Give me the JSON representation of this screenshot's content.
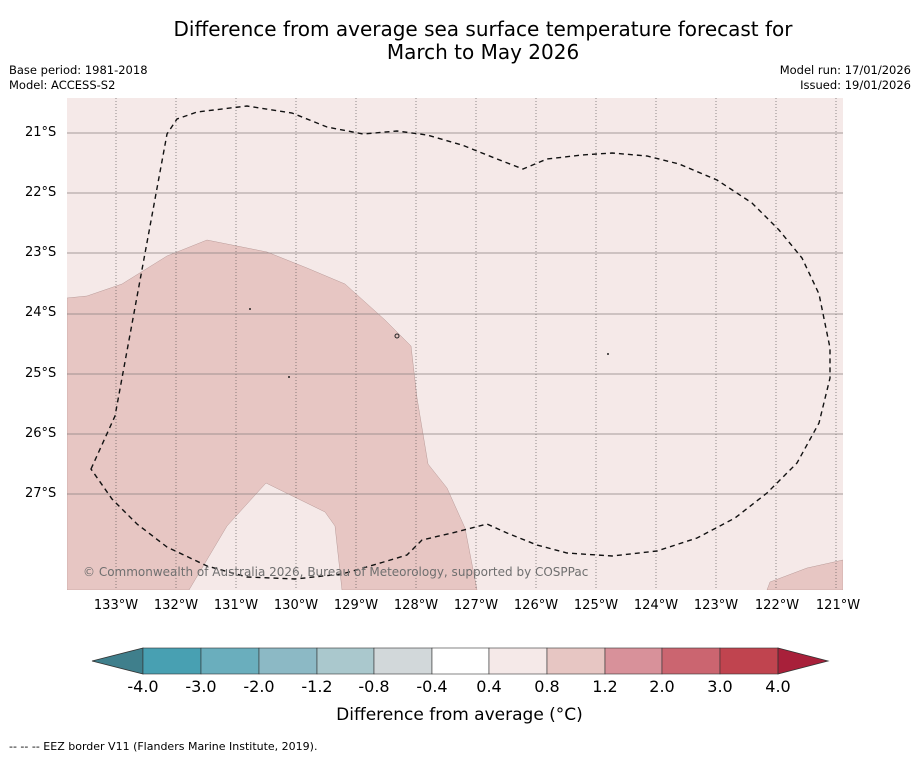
{
  "title": {
    "line1": "Difference from average sea surface temperature forecast for",
    "line2": "March to May 2026"
  },
  "meta": {
    "base_period": "Base period: 1981-2018",
    "model": "Model: ACCESS-S2",
    "model_run": "Model run: 17/01/2026",
    "issued": "Issued: 19/01/2026"
  },
  "map": {
    "latitude_labels": [
      "21°S",
      "22°S",
      "23°S",
      "24°S",
      "25°S",
      "26°S",
      "27°S"
    ],
    "longitude_labels": [
      "133°W",
      "132°W",
      "131°W",
      "130°W",
      "129°W",
      "128°W",
      "127°W",
      "126°W",
      "125°W",
      "124°W",
      "123°W",
      "122°W",
      "121°W"
    ],
    "background_color": "#f5e9e8",
    "anomaly_patch_color": "#e7c6c3",
    "copyright": "© Commonwealth of Australia 2026, Bureau of Meteorology, supported by COSPPac"
  },
  "colorbar": {
    "labels": [
      "-4.0",
      "-3.0",
      "-2.0",
      "-1.2",
      "-0.8",
      "-0.4",
      "0.4",
      "0.8",
      "1.2",
      "2.0",
      "3.0",
      "4.0"
    ],
    "colors": [
      "#3f7f8c",
      "#48a0b2",
      "#6aaebd",
      "#8cb9c5",
      "#aac8cd",
      "#d2d8da",
      "#ffffff",
      "#f5e9e8",
      "#e7c6c3",
      "#d8919a",
      "#cb6570",
      "#c0444f",
      "#a8203a"
    ],
    "title": "Difference from average (°C)"
  },
  "footnote": "--  --  -- EEZ border V11 (Flanders Marine Institute, 2019)."
}
